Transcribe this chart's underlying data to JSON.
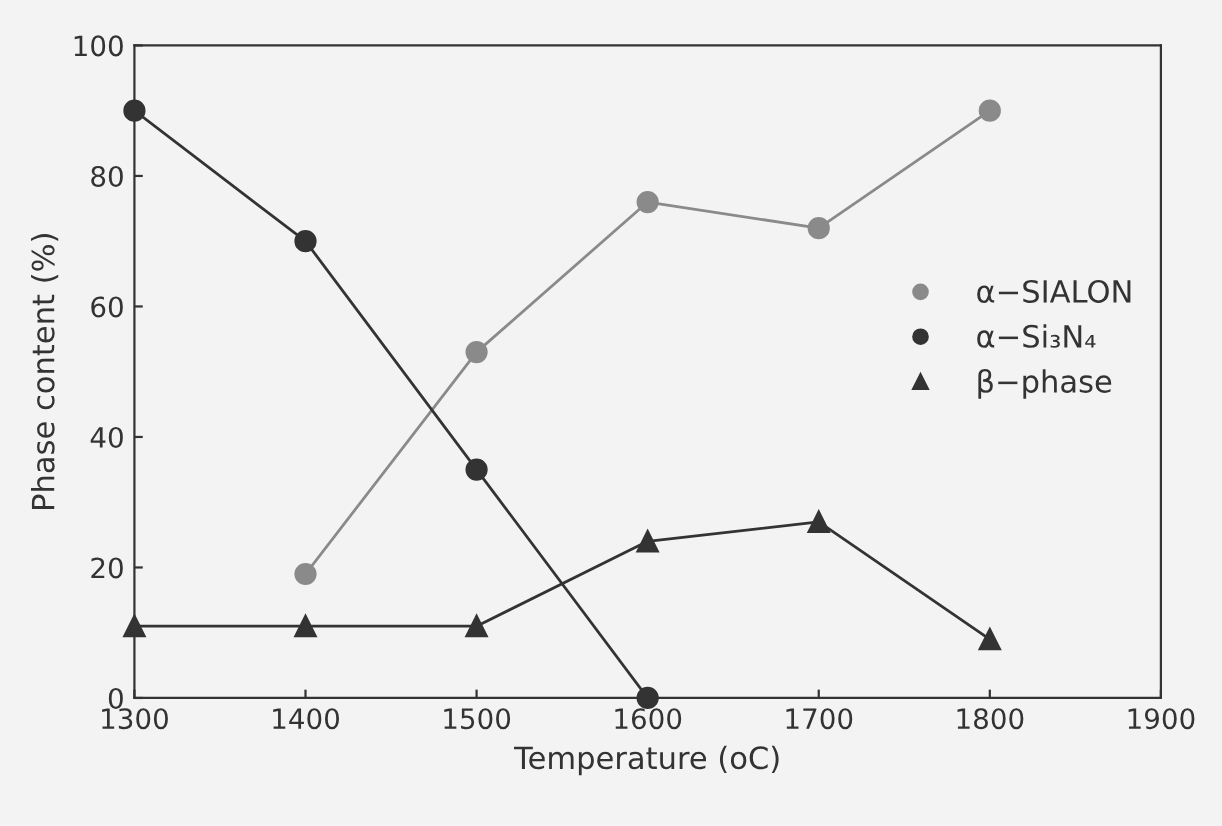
{
  "chart_data": {
    "type": "line",
    "xlabel": "Temperature (oC)",
    "ylabel": "Phase content (%)",
    "xlim": [
      1300,
      1900
    ],
    "xticks": [
      1300,
      1400,
      1500,
      1600,
      1700,
      1800,
      1900
    ],
    "ylim": [
      0,
      100
    ],
    "yticks": [
      0,
      20,
      40,
      60,
      80,
      100
    ],
    "grid": false,
    "legend": "right",
    "line_style": "solid",
    "series": [
      {
        "name": "α−SIALON",
        "color": "#8a8a8a",
        "marker": "circle",
        "x": [
          1400,
          1500,
          1600,
          1700,
          1800
        ],
        "values": [
          19,
          53,
          76,
          72,
          90
        ]
      },
      {
        "name": "α−Si₃N₄",
        "color": "#333333",
        "marker": "circle",
        "x": [
          1300,
          1400,
          1500,
          1600
        ],
        "values": [
          90,
          70,
          35,
          0
        ]
      },
      {
        "name": "β−phase",
        "color": "#333333",
        "marker": "triangle",
        "x": [
          1300,
          1400,
          1500,
          1600,
          1700,
          1800
        ],
        "values": [
          11,
          11,
          11,
          24,
          27,
          9
        ]
      }
    ]
  }
}
